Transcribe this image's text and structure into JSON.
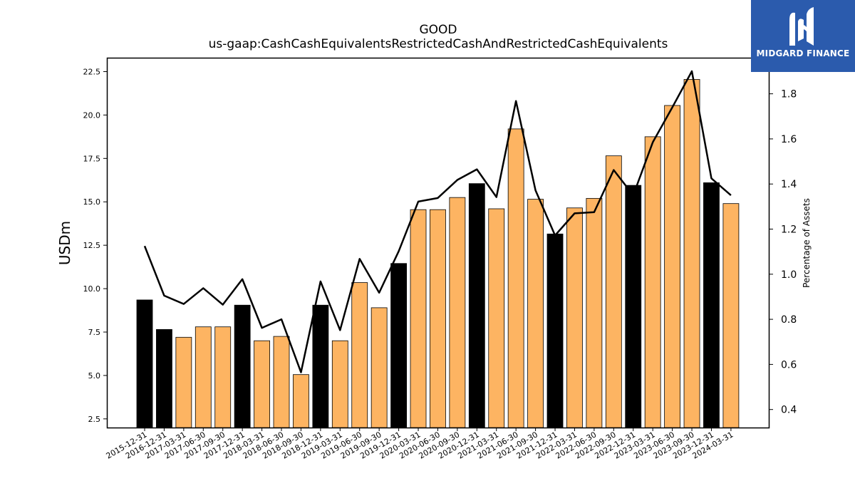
{
  "chart_data": {
    "type": "bar",
    "title": "GOOD",
    "subtitle": "us-gaap:CashCashEquivalentsRestrictedCashAndRestrictedCashEquivalents",
    "ylabel": "USDm",
    "y2label": "Percentage of Assets",
    "ylim": [
      2.0,
      23.3
    ],
    "y2lim": [
      0.32,
      1.96
    ],
    "yticks": [
      "2.5",
      "5.0",
      "7.5",
      "10.0",
      "12.5",
      "15.0",
      "17.5",
      "20.0",
      "22.5"
    ],
    "y2ticks": [
      "0.4",
      "0.6",
      "0.8",
      "1.0",
      "1.2",
      "1.4",
      "1.6",
      "1.8"
    ],
    "categories": [
      "2015-12-31",
      "2016-12-31",
      "2017-03-31",
      "2017-06-30",
      "2017-09-30",
      "2017-12-31",
      "2018-03-31",
      "2018-06-30",
      "2018-09-30",
      "2018-12-31",
      "2019-03-31",
      "2019-06-30",
      "2019-09-30",
      "2019-12-31",
      "2020-03-31",
      "2020-06-30",
      "2020-09-30",
      "2020-12-31",
      "2021-03-31",
      "2021-06-30",
      "2021-09-30",
      "2021-12-31",
      "2022-03-31",
      "2022-06-30",
      "2022-09-30",
      "2022-12-31",
      "2023-03-31",
      "2023-06-30",
      "2023-09-30",
      "2023-12-31",
      "2024-03-31"
    ],
    "series": [
      {
        "type": "bar",
        "values": [
          9.35,
          7.65,
          7.2,
          7.8,
          7.8,
          9.05,
          7.0,
          7.25,
          5.05,
          9.05,
          7.0,
          10.35,
          8.9,
          11.45,
          14.55,
          14.55,
          15.25,
          16.05,
          14.6,
          19.2,
          15.15,
          13.15,
          14.65,
          15.2,
          17.65,
          15.95,
          18.75,
          20.55,
          22.05,
          16.1,
          14.9
        ],
        "annual_flags": [
          1,
          1,
          0,
          0,
          0,
          1,
          0,
          0,
          0,
          1,
          0,
          0,
          0,
          1,
          0,
          0,
          0,
          1,
          0,
          0,
          0,
          1,
          0,
          0,
          0,
          1,
          0,
          0,
          0,
          1,
          0
        ]
      },
      {
        "type": "line",
        "axis": "right",
        "values": [
          1.125,
          0.905,
          0.868,
          0.938,
          0.865,
          0.978,
          0.762,
          0.8,
          0.565,
          0.968,
          0.752,
          1.068,
          0.918,
          1.102,
          1.322,
          1.338,
          1.418,
          1.465,
          1.342,
          1.768,
          1.372,
          1.172,
          1.27,
          1.275,
          1.462,
          1.35,
          1.585,
          1.74,
          1.9,
          1.425,
          1.35
        ]
      }
    ],
    "colors": {
      "annual_bar": "#000000",
      "quarter_bar": "#fdb462",
      "bar_edge": "#000000",
      "line": "#000000"
    }
  },
  "logo": {
    "text": "MIDGARD FINANCE",
    "background": "#2b5bad"
  }
}
